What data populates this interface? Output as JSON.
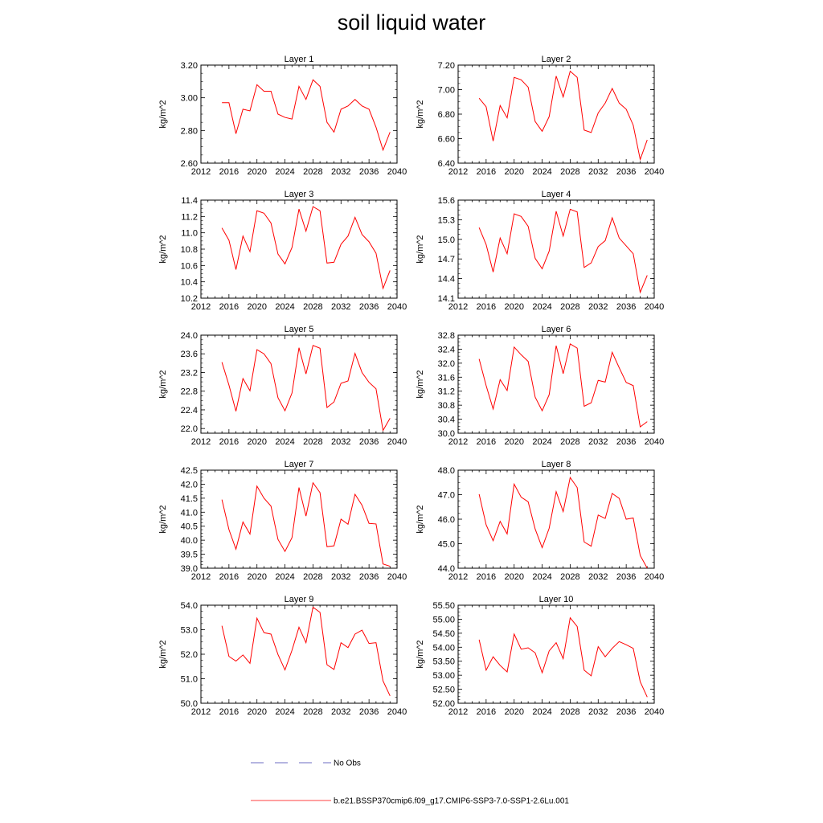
{
  "title": "soil liquid water",
  "legend": {
    "entries": [
      {
        "label": "No Obs",
        "color": "#3b3bb0",
        "style": "dashed"
      },
      {
        "label": "b.e21.BSSP370cmip6.f09_g17.CMIP6-SSP3-7.0-SSP1-2.6Lu.001",
        "color": "#ff0000",
        "style": "solid"
      }
    ]
  },
  "chart_data": [
    {
      "type": "line",
      "title": "Layer 1",
      "ylabel": "kg/m^2",
      "xlim": [
        2012,
        2040
      ],
      "xticks": [
        "2012",
        "2016",
        "2020",
        "2024",
        "2028",
        "2032",
        "2036",
        "2040"
      ],
      "ylim": [
        2.6,
        3.2
      ],
      "yticks": [
        "2.60",
        "2.80",
        "3.00",
        "3.20"
      ],
      "series": [
        {
          "color": "#ff0000",
          "x": [
            2015,
            2016,
            2017,
            2018,
            2019,
            2020,
            2021,
            2022,
            2023,
            2024,
            2025,
            2026,
            2027,
            2028,
            2029,
            2030,
            2031,
            2032,
            2033,
            2034,
            2035,
            2036,
            2037,
            2038,
            2039
          ],
          "values": [
            2.97,
            2.97,
            2.78,
            2.93,
            2.92,
            3.08,
            3.04,
            3.04,
            2.9,
            2.88,
            2.87,
            3.07,
            2.99,
            3.11,
            3.07,
            2.85,
            2.79,
            2.93,
            2.95,
            2.99,
            2.95,
            2.93,
            2.82,
            2.68,
            2.79
          ]
        }
      ]
    },
    {
      "type": "line",
      "title": "Layer 2",
      "ylabel": "kg/m^2",
      "xlim": [
        2012,
        2040
      ],
      "xticks": [
        "2012",
        "2016",
        "2020",
        "2024",
        "2028",
        "2032",
        "2036",
        "2040"
      ],
      "ylim": [
        6.4,
        7.2
      ],
      "yticks": [
        "6.40",
        "6.60",
        "6.80",
        "7.00",
        "7.20"
      ],
      "series": [
        {
          "color": "#ff0000",
          "x": [
            2015,
            2016,
            2017,
            2018,
            2019,
            2020,
            2021,
            2022,
            2023,
            2024,
            2025,
            2026,
            2027,
            2028,
            2029,
            2030,
            2031,
            2032,
            2033,
            2034,
            2035,
            2036,
            2037,
            2038,
            2039
          ],
          "values": [
            6.93,
            6.86,
            6.58,
            6.87,
            6.77,
            7.1,
            7.08,
            7.02,
            6.74,
            6.66,
            6.78,
            7.11,
            6.94,
            7.15,
            7.1,
            6.67,
            6.65,
            6.81,
            6.89,
            7.01,
            6.89,
            6.84,
            6.71,
            6.43,
            6.59
          ]
        }
      ]
    },
    {
      "type": "line",
      "title": "Layer 3",
      "ylabel": "kg/m^2",
      "xlim": [
        2012,
        2040
      ],
      "xticks": [
        "2012",
        "2016",
        "2020",
        "2024",
        "2028",
        "2032",
        "2036",
        "2040"
      ],
      "ylim": [
        10.2,
        11.4
      ],
      "yticks": [
        "10.2",
        "10.4",
        "10.6",
        "10.8",
        "11.0",
        "11.2",
        "11.4"
      ],
      "series": [
        {
          "color": "#ff0000",
          "x": [
            2015,
            2016,
            2017,
            2018,
            2019,
            2020,
            2021,
            2022,
            2023,
            2024,
            2025,
            2026,
            2027,
            2028,
            2029,
            2030,
            2031,
            2032,
            2033,
            2034,
            2035,
            2036,
            2037,
            2038,
            2039
          ],
          "values": [
            11.06,
            10.91,
            10.55,
            10.96,
            10.77,
            11.27,
            11.24,
            11.12,
            10.74,
            10.62,
            10.82,
            11.29,
            11.02,
            11.32,
            11.27,
            10.63,
            10.64,
            10.86,
            10.96,
            11.19,
            10.98,
            10.89,
            10.75,
            10.32,
            10.54
          ]
        }
      ]
    },
    {
      "type": "line",
      "title": "Layer 4",
      "ylabel": "kg/m^2",
      "xlim": [
        2012,
        2040
      ],
      "xticks": [
        "2012",
        "2016",
        "2020",
        "2024",
        "2028",
        "2032",
        "2036",
        "2040"
      ],
      "ylim": [
        14.1,
        15.6
      ],
      "yticks": [
        "14.1",
        "14.4",
        "14.7",
        "15.0",
        "15.3",
        "15.6"
      ],
      "series": [
        {
          "color": "#ff0000",
          "x": [
            2015,
            2016,
            2017,
            2018,
            2019,
            2020,
            2021,
            2022,
            2023,
            2024,
            2025,
            2026,
            2027,
            2028,
            2029,
            2030,
            2031,
            2032,
            2033,
            2034,
            2035,
            2036,
            2037,
            2038,
            2039
          ],
          "values": [
            15.18,
            14.92,
            14.5,
            15.02,
            14.78,
            15.39,
            15.35,
            15.2,
            14.71,
            14.55,
            14.82,
            15.43,
            15.05,
            15.46,
            15.42,
            14.57,
            14.64,
            14.89,
            14.98,
            15.33,
            15.02,
            14.9,
            14.78,
            14.19,
            14.45
          ]
        }
      ]
    },
    {
      "type": "line",
      "title": "Layer 5",
      "ylabel": "kg/m^2",
      "xlim": [
        2012,
        2040
      ],
      "xticks": [
        "2012",
        "2016",
        "2020",
        "2024",
        "2028",
        "2032",
        "2036",
        "2040"
      ],
      "ylim": [
        21.9,
        24.0
      ],
      "yticks": [
        "22.0",
        "22.4",
        "22.8",
        "23.2",
        "23.6",
        "24.0"
      ],
      "series": [
        {
          "color": "#ff0000",
          "x": [
            2015,
            2016,
            2017,
            2018,
            2019,
            2020,
            2021,
            2022,
            2023,
            2024,
            2025,
            2026,
            2027,
            2028,
            2029,
            2030,
            2031,
            2032,
            2033,
            2034,
            2035,
            2036,
            2037,
            2038,
            2039
          ],
          "values": [
            23.42,
            22.93,
            22.37,
            23.07,
            22.81,
            23.69,
            23.6,
            23.39,
            22.66,
            22.38,
            22.76,
            23.73,
            23.17,
            23.78,
            23.72,
            22.45,
            22.57,
            22.97,
            23.02,
            23.61,
            23.2,
            22.99,
            22.85,
            21.96,
            22.22
          ]
        }
      ]
    },
    {
      "type": "line",
      "title": "Layer 6",
      "ylabel": "kg/m^2",
      "xlim": [
        2012,
        2040
      ],
      "xticks": [
        "2012",
        "2016",
        "2020",
        "2024",
        "2028",
        "2032",
        "2036",
        "2040"
      ],
      "ylim": [
        30.0,
        32.8
      ],
      "yticks": [
        "30.0",
        "30.4",
        "30.8",
        "31.2",
        "31.6",
        "32.0",
        "32.4",
        "32.8"
      ],
      "series": [
        {
          "color": "#ff0000",
          "x": [
            2015,
            2016,
            2017,
            2018,
            2019,
            2020,
            2021,
            2022,
            2023,
            2024,
            2025,
            2026,
            2027,
            2028,
            2029,
            2030,
            2031,
            2032,
            2033,
            2034,
            2035,
            2036,
            2037,
            2038,
            2039
          ],
          "values": [
            32.12,
            31.36,
            30.69,
            31.53,
            31.22,
            32.46,
            32.24,
            32.05,
            31.03,
            30.64,
            31.1,
            32.5,
            31.7,
            32.55,
            32.43,
            30.77,
            30.87,
            31.51,
            31.46,
            32.31,
            31.87,
            31.45,
            31.36,
            30.18,
            30.33
          ]
        }
      ]
    },
    {
      "type": "line",
      "title": "Layer 7",
      "ylabel": "kg/m^2",
      "xlim": [
        2012,
        2040
      ],
      "xticks": [
        "2012",
        "2016",
        "2020",
        "2024",
        "2028",
        "2032",
        "2036",
        "2040"
      ],
      "ylim": [
        39.0,
        42.5
      ],
      "yticks": [
        "39.0",
        "39.5",
        "40.0",
        "40.5",
        "41.0",
        "41.5",
        "42.0",
        "42.5"
      ],
      "series": [
        {
          "color": "#ff0000",
          "x": [
            2015,
            2016,
            2017,
            2018,
            2019,
            2020,
            2021,
            2022,
            2023,
            2024,
            2025,
            2026,
            2027,
            2028,
            2029,
            2030,
            2031,
            2032,
            2033,
            2034,
            2035,
            2036,
            2037,
            2038,
            2039
          ],
          "values": [
            41.45,
            40.38,
            39.68,
            40.65,
            40.22,
            41.93,
            41.5,
            41.22,
            40.03,
            39.6,
            40.09,
            41.88,
            40.86,
            42.05,
            41.7,
            39.77,
            39.8,
            40.75,
            40.57,
            41.64,
            41.25,
            40.6,
            40.58,
            39.15,
            39.07
          ]
        }
      ]
    },
    {
      "type": "line",
      "title": "Layer 8",
      "ylabel": "kg/m^2",
      "xlim": [
        2012,
        2040
      ],
      "xticks": [
        "2012",
        "2016",
        "2020",
        "2024",
        "2028",
        "2032",
        "2036",
        "2040"
      ],
      "ylim": [
        44.0,
        48.0
      ],
      "yticks": [
        "44.0",
        "45.0",
        "46.0",
        "47.0",
        "48.0"
      ],
      "series": [
        {
          "color": "#ff0000",
          "x": [
            2015,
            2016,
            2017,
            2018,
            2019,
            2020,
            2021,
            2022,
            2023,
            2024,
            2025,
            2026,
            2027,
            2028,
            2029,
            2030,
            2031,
            2032,
            2033,
            2034,
            2035,
            2036,
            2037,
            2038,
            2039
          ],
          "values": [
            47.02,
            45.77,
            45.12,
            45.91,
            45.4,
            47.43,
            46.9,
            46.71,
            45.6,
            44.84,
            45.63,
            47.12,
            46.31,
            47.7,
            47.29,
            45.07,
            44.9,
            46.17,
            46.03,
            47.05,
            46.85,
            46.0,
            46.05,
            44.52,
            43.95
          ]
        }
      ]
    },
    {
      "type": "line",
      "title": "Layer 9",
      "ylabel": "kg/m^2",
      "xlim": [
        2012,
        2040
      ],
      "xticks": [
        "2012",
        "2016",
        "2020",
        "2024",
        "2028",
        "2032",
        "2036",
        "2040"
      ],
      "ylim": [
        50.0,
        54.0
      ],
      "yticks": [
        "50.0",
        "51.0",
        "52.0",
        "53.0",
        "54.0"
      ],
      "series": [
        {
          "color": "#ff0000",
          "x": [
            2015,
            2016,
            2017,
            2018,
            2019,
            2020,
            2021,
            2022,
            2023,
            2024,
            2025,
            2026,
            2027,
            2028,
            2029,
            2030,
            2031,
            2032,
            2033,
            2034,
            2035,
            2036,
            2037,
            2038,
            2039
          ],
          "values": [
            53.16,
            51.91,
            51.72,
            51.97,
            51.63,
            53.47,
            52.88,
            52.82,
            51.99,
            51.36,
            52.16,
            53.1,
            52.47,
            53.92,
            53.71,
            51.57,
            51.38,
            52.47,
            52.27,
            52.82,
            52.98,
            52.44,
            52.47,
            50.91,
            50.3
          ]
        }
      ]
    },
    {
      "type": "line",
      "title": "Layer 10",
      "ylabel": "kg/m^2",
      "xlim": [
        2012,
        2040
      ],
      "xticks": [
        "2012",
        "2016",
        "2020",
        "2024",
        "2028",
        "2032",
        "2036",
        "2040"
      ],
      "ylim": [
        52.0,
        55.5
      ],
      "yticks": [
        "52.00",
        "52.50",
        "53.00",
        "53.50",
        "54.00",
        "54.50",
        "55.00",
        "55.50"
      ],
      "series": [
        {
          "color": "#ff0000",
          "x": [
            2015,
            2016,
            2017,
            2018,
            2019,
            2020,
            2021,
            2022,
            2023,
            2024,
            2025,
            2026,
            2027,
            2028,
            2029,
            2030,
            2031,
            2032,
            2033,
            2034,
            2035,
            2036,
            2037,
            2038,
            2039
          ],
          "values": [
            54.27,
            53.18,
            53.66,
            53.35,
            53.12,
            54.47,
            53.93,
            53.98,
            53.8,
            53.09,
            53.87,
            54.16,
            53.59,
            55.05,
            54.74,
            53.18,
            52.98,
            54.02,
            53.66,
            53.96,
            54.2,
            54.09,
            53.96,
            52.77,
            52.22
          ]
        }
      ]
    }
  ]
}
